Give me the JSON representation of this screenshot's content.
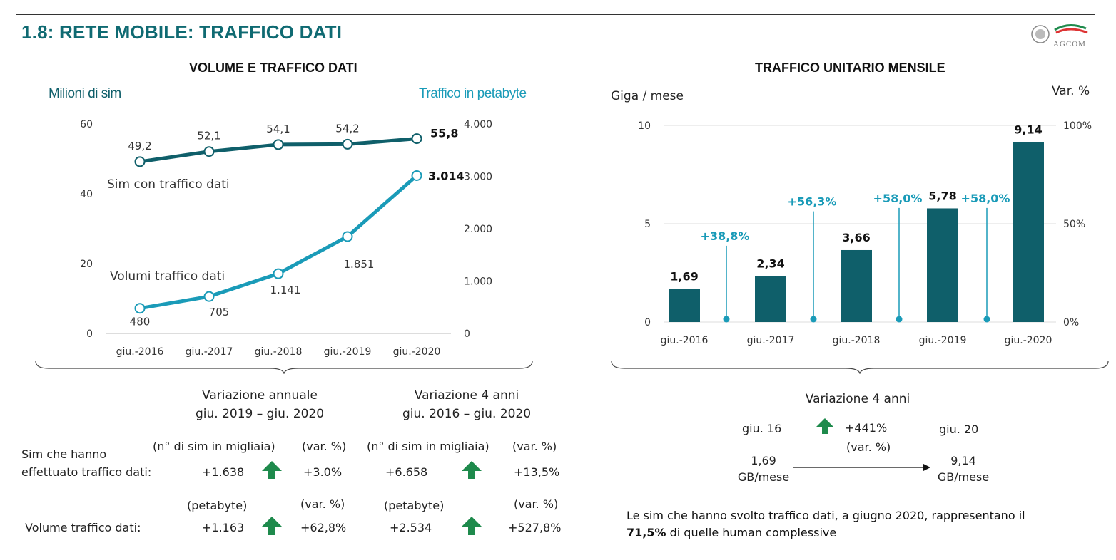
{
  "page": {
    "title": "1.8: RETE MOBILE: TRAFFICO DATI",
    "logo_text": "AGCOM"
  },
  "left_chart_title": "VOLUME E TRAFFICO DATI",
  "right_chart_title": "TRAFFICO UNITARIO MENSILE",
  "chart_data": [
    {
      "type": "line",
      "title": "VOLUME E TRAFFICO DATI",
      "categories": [
        "giu.-2016",
        "giu.-2017",
        "giu.-2018",
        "giu.-2019",
        "giu.-2020"
      ],
      "ylabel_left": "Milioni di sim",
      "ylabel_right": "Traffico in petabyte",
      "ylim_left": [
        0,
        60
      ],
      "yticks_left": [
        "0",
        "20",
        "40",
        "60"
      ],
      "ylim_right": [
        0,
        4000
      ],
      "yticks_right": [
        "0",
        "1.000",
        "2.000",
        "3.000",
        "4.000"
      ],
      "grid": false,
      "series": [
        {
          "name": "Sim con traffico dati",
          "axis": "left",
          "color": "#0f5f6a",
          "values": [
            49.2,
            52.1,
            54.1,
            54.2,
            55.8
          ],
          "labels": [
            "49,2",
            "52,1",
            "54,1",
            "54,2",
            "55,8"
          ]
        },
        {
          "name": "Volumi traffico dati",
          "axis": "right",
          "color": "#1a9bb8",
          "values": [
            480,
            705,
            1141,
            1851,
            3014
          ],
          "labels": [
            "480",
            "705",
            "1.141",
            "1.851",
            "3.014"
          ]
        }
      ]
    },
    {
      "type": "bar",
      "title": "TRAFFICO UNITARIO MENSILE",
      "categories": [
        "giu.-2016",
        "giu.-2017",
        "giu.-2018",
        "giu.-2019",
        "giu.-2020"
      ],
      "ylabel_left": "Giga / mese",
      "ylabel_right": "Var. %",
      "ylim_left": [
        0,
        10
      ],
      "yticks_left": [
        "0",
        "5",
        "10"
      ],
      "ylim_right": [
        0,
        100
      ],
      "yticks_right": [
        "0%",
        "50%",
        "100%"
      ],
      "grid": true,
      "bar_color": "#0f5f6a",
      "values": [
        1.69,
        2.34,
        3.66,
        5.78,
        9.14
      ],
      "value_labels": [
        "1,69",
        "2,34",
        "3,66",
        "5,78",
        "9,14"
      ],
      "variations": [
        38.8,
        56.3,
        58.0,
        58.0
      ],
      "variation_labels": [
        "+38,8%",
        "+56,3%",
        "+58,0%",
        "+58,0%"
      ],
      "variation_color": "#1a9bb8"
    }
  ],
  "table": {
    "annual_header_1": "Variazione annuale",
    "annual_header_2": "giu. 2019 – giu. 2020",
    "four_header_1": "Variazione 4 anni",
    "four_header_2": "giu. 2016 – giu. 2020",
    "row1_label_1": "Sim che hanno",
    "row1_label_2": "effettuato traffico dati:",
    "row1_unit_a": "(n° di  sim in migliaia)",
    "row1_pct_a": "(var. %)",
    "row1_unit_b": "(n° di  sim in migliaia)",
    "row1_pct_b": "(var. %)",
    "row1_val_a": "+1.638",
    "row1_var_a": "+3.0%",
    "row1_val_b": "+6.658",
    "row1_var_b": "+13,5%",
    "row2_label": "Volume traffico dati:",
    "row2_unit_a": "(petabyte)",
    "row2_pct_a": "(var. %)",
    "row2_unit_b": "(petabyte)",
    "row2_pct_b": "(var. %)",
    "row2_val_a": "+1.163",
    "row2_var_a": "+62,8%",
    "row2_val_b": "+2.534",
    "row2_var_b": "+527,8%",
    "arrow_color": "#1e8a4c"
  },
  "right_summary": {
    "header": "Variazione 4 anni",
    "from_label": "giu. 16",
    "to_label": "giu. 20",
    "change": "+441%",
    "change_unit": "(var. %)",
    "from_value": "1,69",
    "from_unit": "GB/mese",
    "to_value": "9,14",
    "to_unit": "GB/mese",
    "note_part1": "Le sim che hanno svolto traffico dati, a giugno 2020, rappresentano il",
    "note_bold": "71,5%",
    "note_part2": " di quelle human complessive"
  }
}
